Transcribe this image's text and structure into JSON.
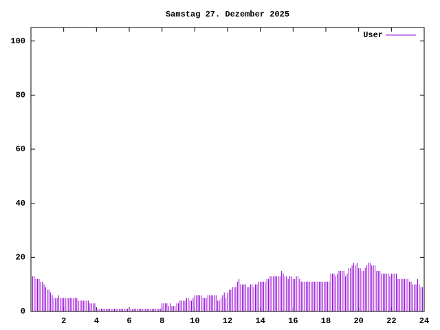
{
  "chart_data": {
    "type": "impulses",
    "title": "Samstag 27. Dezember 2025",
    "x": [
      0,
      0.1,
      0.2,
      0.3,
      0.4,
      0.5,
      0.6,
      0.7,
      0.8,
      0.9,
      1,
      1.1,
      1.2,
      1.3,
      1.4,
      1.5,
      1.6,
      1.7,
      1.8,
      1.9,
      2,
      2.1,
      2.2,
      2.3,
      2.4,
      2.5,
      2.6,
      2.7,
      2.8,
      2.9,
      3,
      3.1,
      3.2,
      3.3,
      3.4,
      3.5,
      3.6,
      3.7,
      3.8,
      3.9,
      4,
      4.1,
      4.2,
      4.3,
      4.4,
      4.5,
      4.6,
      4.7,
      4.8,
      4.9,
      5,
      5.1,
      5.2,
      5.3,
      5.4,
      5.5,
      5.6,
      5.7,
      5.8,
      5.9,
      6,
      6.1,
      6.2,
      6.3,
      6.4,
      6.5,
      6.6,
      6.7,
      6.8,
      6.9,
      7,
      7.1,
      7.2,
      7.3,
      7.4,
      7.5,
      7.6,
      7.7,
      7.8,
      7.9,
      8,
      8.1,
      8.2,
      8.3,
      8.4,
      8.5,
      8.6,
      8.7,
      8.8,
      8.9,
      9,
      9.1,
      9.2,
      9.3,
      9.4,
      9.5,
      9.6,
      9.7,
      9.8,
      9.9,
      10,
      10.1,
      10.2,
      10.3,
      10.4,
      10.5,
      10.6,
      10.7,
      10.8,
      10.9,
      11,
      11.1,
      11.2,
      11.3,
      11.4,
      11.5,
      11.6,
      11.7,
      11.8,
      11.9,
      12,
      12.1,
      12.2,
      12.3,
      12.4,
      12.5,
      12.6,
      12.7,
      12.8,
      12.9,
      13,
      13.1,
      13.2,
      13.3,
      13.4,
      13.5,
      13.6,
      13.7,
      13.8,
      13.9,
      14,
      14.1,
      14.2,
      14.3,
      14.4,
      14.5,
      14.6,
      14.7,
      14.8,
      14.9,
      15,
      15.1,
      15.2,
      15.3,
      15.4,
      15.5,
      15.6,
      15.7,
      15.8,
      15.9,
      16,
      16.1,
      16.2,
      16.3,
      16.4,
      16.5,
      16.6,
      16.7,
      16.8,
      16.9,
      17,
      17.1,
      17.2,
      17.3,
      17.4,
      17.5,
      17.6,
      17.7,
      17.8,
      17.9,
      18,
      18.1,
      18.2,
      18.3,
      18.4,
      18.5,
      18.6,
      18.7,
      18.8,
      18.9,
      19,
      19.1,
      19.2,
      19.3,
      19.4,
      19.5,
      19.6,
      19.7,
      19.8,
      19.9,
      20,
      20.1,
      20.2,
      20.3,
      20.4,
      20.5,
      20.6,
      20.7,
      20.8,
      20.9,
      21,
      21.1,
      21.2,
      21.3,
      21.4,
      21.5,
      21.6,
      21.7,
      21.8,
      21.9,
      22,
      22.1,
      22.2,
      22.3,
      22.4,
      22.5,
      22.6,
      22.7,
      22.8,
      22.9,
      23,
      23.1,
      23.2,
      23.3,
      23.4,
      23.5,
      23.6,
      23.7,
      23.8,
      23.9
    ],
    "series": [
      {
        "name": "User",
        "color": "#9400d3",
        "values": [
          13,
          13,
          13,
          12,
          12,
          12,
          11,
          11,
          10,
          9,
          8,
          8,
          7,
          6,
          5,
          5,
          5,
          6,
          5,
          5,
          5,
          5,
          5,
          5,
          5,
          5,
          5,
          5,
          5,
          4,
          4,
          4,
          4,
          4,
          4,
          4,
          3,
          3,
          3,
          3,
          1,
          1,
          1,
          1,
          1,
          1,
          1,
          1,
          1,
          1,
          1,
          1,
          1,
          1,
          1,
          1,
          1,
          1,
          1,
          1,
          1,
          1,
          1,
          1,
          1,
          1,
          1,
          1,
          1,
          1,
          1,
          1,
          1,
          1,
          1,
          1,
          1,
          1,
          1,
          1,
          3,
          3,
          3,
          3,
          2,
          3,
          2,
          2,
          2,
          3,
          3,
          4,
          4,
          4,
          4,
          5,
          5,
          4,
          4,
          5,
          6,
          6,
          6,
          6,
          6,
          5,
          5,
          5,
          6,
          6,
          6,
          6,
          6,
          6,
          4,
          4,
          5,
          6,
          7,
          5,
          7,
          8,
          8,
          9,
          9,
          9,
          11,
          12,
          10,
          10,
          10,
          10,
          9,
          9,
          10,
          10,
          9,
          10,
          10,
          11,
          11,
          11,
          11,
          11,
          12,
          12,
          13,
          13,
          13,
          13,
          13,
          13,
          13,
          15,
          14,
          13,
          13,
          12,
          13,
          13,
          12,
          12,
          13,
          13,
          12,
          11,
          11,
          11,
          11,
          11,
          11,
          11,
          11,
          11,
          11,
          11,
          11,
          11,
          11,
          11,
          11,
          11,
          11,
          14,
          14,
          14,
          13,
          14,
          15,
          15,
          15,
          15,
          13,
          14,
          16,
          16,
          17,
          18,
          17,
          18,
          16,
          16,
          15,
          15,
          16,
          17,
          18,
          18,
          17,
          17,
          17,
          15,
          15,
          15,
          14,
          14,
          14,
          14,
          14,
          13,
          14,
          14,
          14,
          14,
          12,
          12,
          12,
          12,
          12,
          12,
          12,
          11,
          11,
          10,
          10,
          10,
          12,
          10,
          9,
          9
        ]
      }
    ],
    "xlim": [
      0,
      24
    ],
    "xticks": [
      2,
      4,
      6,
      8,
      10,
      12,
      14,
      16,
      18,
      20,
      22,
      24
    ],
    "ylim": [
      0,
      105
    ],
    "yticks": [
      0,
      20,
      40,
      60,
      80,
      100
    ],
    "legend": "upper right"
  }
}
